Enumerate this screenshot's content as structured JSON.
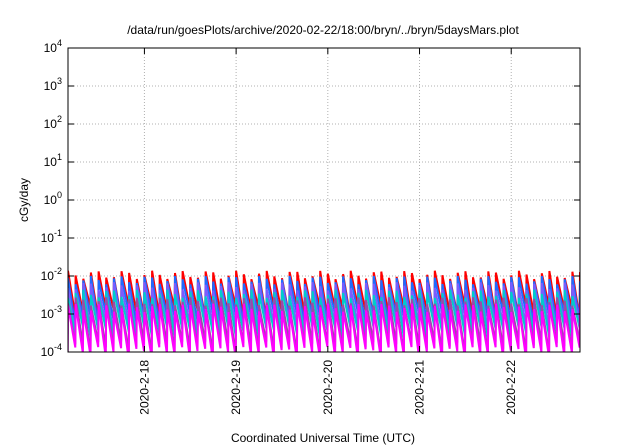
{
  "chart_data": {
    "type": "line",
    "title": "/data/run/goesPlots/archive/2020-02-22/18:00/bryn/../bryn/5daysMars.plot",
    "xlabel": "Coordinated Universal Time (UTC)",
    "ylabel": "cGy/day",
    "yscale": "log",
    "ylim": [
      0.0001,
      10000
    ],
    "xlim": [
      "2020-02-17 04:00",
      "2020-02-22 18:00"
    ],
    "x_tick_labels": [
      "2020-2-18",
      "2020-2-19",
      "2020-2-20",
      "2020-2-21",
      "2020-2-22"
    ],
    "y_tick_labels": [
      {
        "base": "10",
        "exp": "-4"
      },
      {
        "base": "10",
        "exp": "-3"
      },
      {
        "base": "10",
        "exp": "-2"
      },
      {
        "base": "10",
        "exp": "-1"
      },
      {
        "base": "10",
        "exp": "0"
      },
      {
        "base": "10",
        "exp": "1"
      },
      {
        "base": "10",
        "exp": "2"
      },
      {
        "base": "10",
        "exp": "3"
      },
      {
        "base": "10",
        "exp": "4"
      }
    ],
    "grid": true,
    "legend": "none",
    "pattern": "sawtooth, about one cycle per 2 hours",
    "series": [
      {
        "color": "#ff0000",
        "peak": 0.011,
        "trough": 0.0012
      },
      {
        "color": "#1e6bff",
        "peak": 0.008,
        "trough": 0.0008
      },
      {
        "color": "#7a5cff",
        "peak": 0.0055,
        "trough": 0.00045
      },
      {
        "color": "#00cccc",
        "peak": 0.0035,
        "trough": 0.00035
      },
      {
        "color": "#9a4aaa",
        "peak": 0.0022,
        "trough": 0.00014
      },
      {
        "color": "#ff00ff",
        "peak": 0.0015,
        "trough": 0.0001
      }
    ]
  }
}
